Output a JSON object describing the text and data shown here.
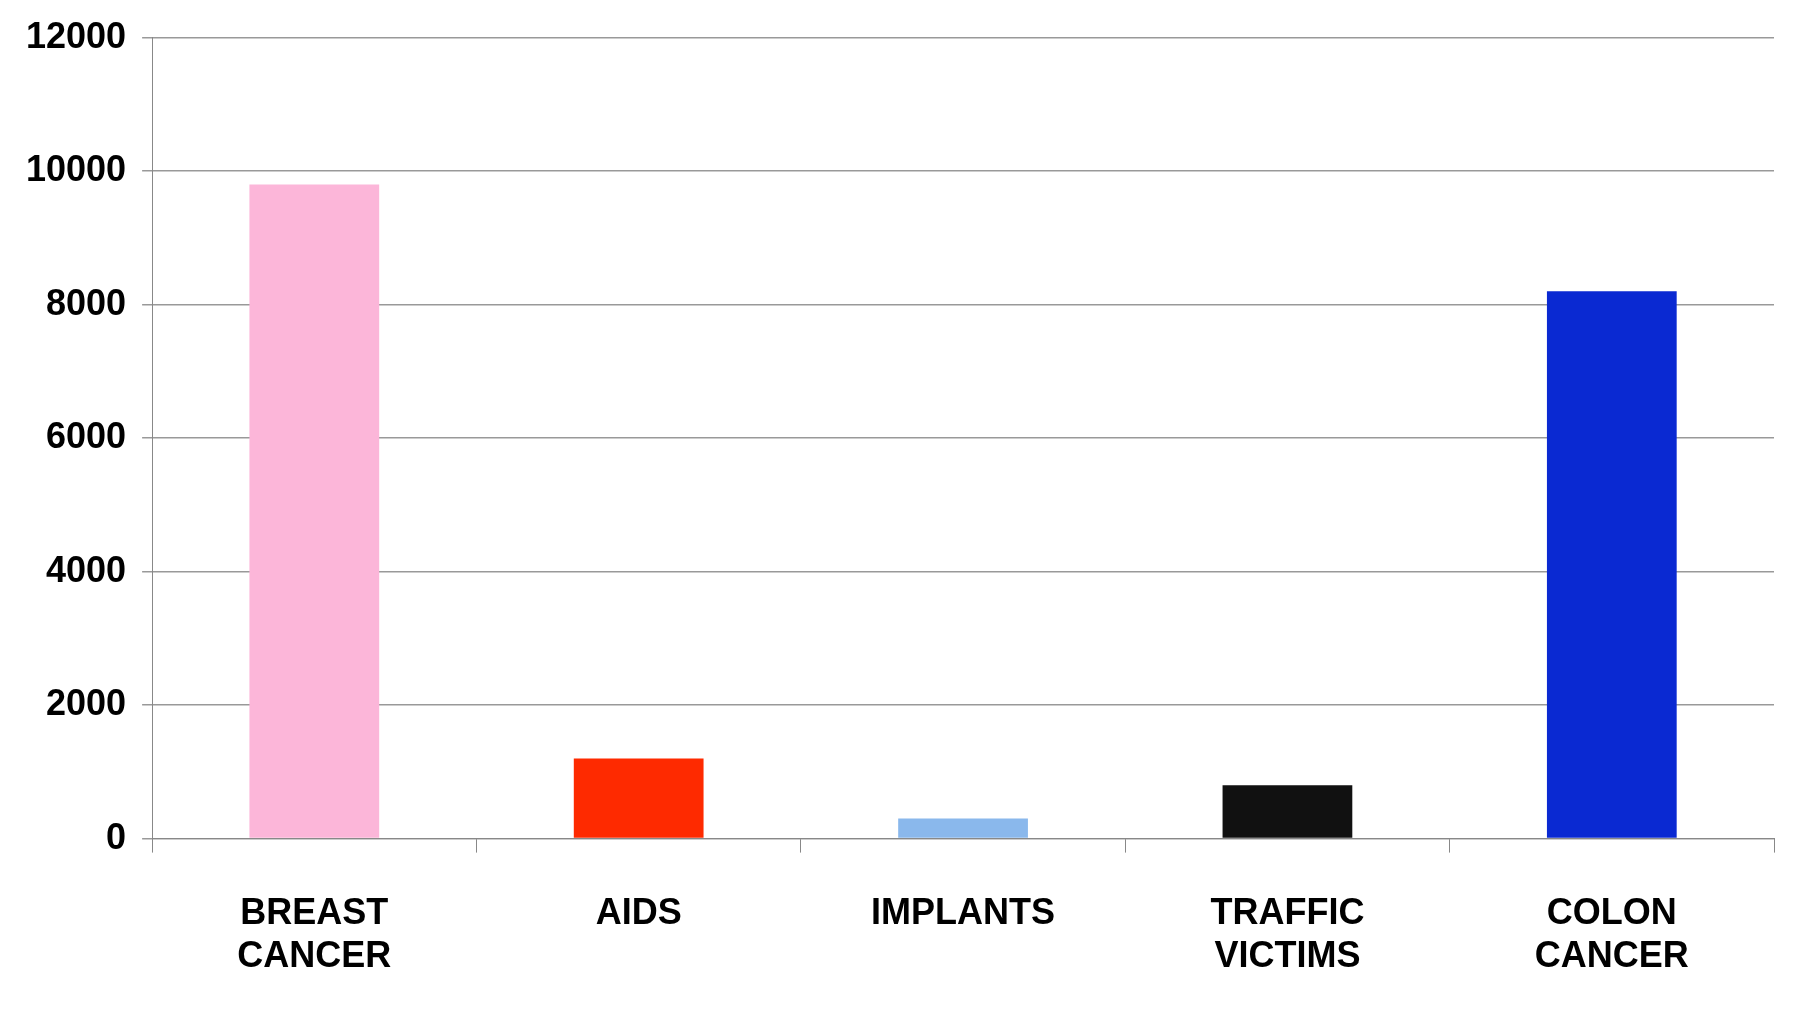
{
  "chart_data": {
    "type": "bar",
    "categories": [
      "BREAST CANCER",
      "AIDS",
      "IMPLANTS",
      "TRAFFIC VICTIMS",
      "COLON CANCER"
    ],
    "values": [
      9800,
      1200,
      300,
      800,
      8200
    ],
    "colors": [
      "#fcb6d9",
      "#fe2a00",
      "#8ab8ec",
      "#111111",
      "#0a29d2"
    ],
    "ylim": [
      0,
      12000
    ],
    "yticks": [
      0,
      2000,
      4000,
      6000,
      8000,
      10000,
      12000
    ],
    "grid": "y",
    "legend": false
  }
}
